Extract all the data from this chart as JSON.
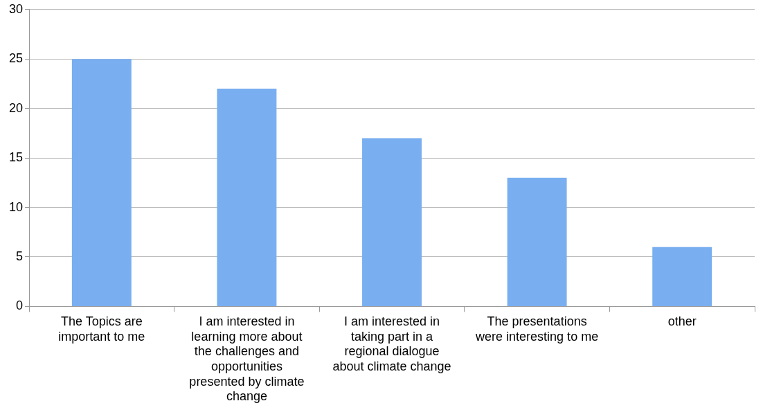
{
  "chart_data": {
    "type": "bar",
    "categories": [
      "The Topics are important to me",
      "I am interested in learning more about the challenges and opportunities presented by climate change",
      "I am interested in taking part in a regional dialogue about climate change",
      "The presentations were interesting to me",
      "other"
    ],
    "values": [
      25,
      22,
      17,
      13,
      6
    ],
    "color": "#79aef0",
    "ylim": [
      0,
      30
    ],
    "yticks": [
      0,
      5,
      10,
      15,
      20,
      25,
      30
    ],
    "grid": "y",
    "legend": false
  }
}
